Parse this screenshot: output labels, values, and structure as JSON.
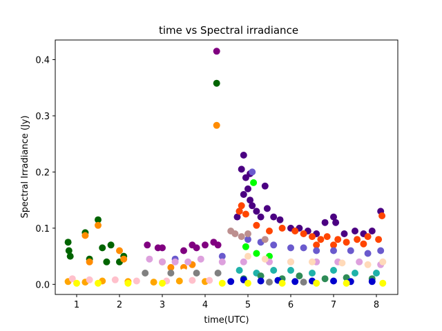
{
  "chart_data": {
    "type": "scatter",
    "title": "time vs Spectral irradiance",
    "xlabel": "time(UTC)",
    "ylabel": "Spectral Irradiance (Jy)",
    "xlim": [
      0.5,
      8.5
    ],
    "ylim": [
      -0.018,
      0.435
    ],
    "xticks": [
      1,
      2,
      3,
      4,
      5,
      6,
      7,
      8
    ],
    "yticks": [
      0.0,
      0.1,
      0.2,
      0.3,
      0.4
    ],
    "ytick_labels": [
      "0.0",
      "0.1",
      "0.2",
      "0.3",
      "0.4"
    ],
    "grid": false,
    "legend": "none",
    "series": [
      {
        "color": "#4b0082",
        "points": [
          [
            4.9,
            0.23
          ],
          [
            4.85,
            0.205
          ],
          [
            4.95,
            0.19
          ],
          [
            5.0,
            0.17
          ],
          [
            4.9,
            0.16
          ],
          [
            5.05,
            0.15
          ],
          [
            5.1,
            0.14
          ],
          [
            4.8,
            0.13
          ],
          [
            5.2,
            0.13
          ],
          [
            5.3,
            0.12
          ],
          [
            5.45,
            0.135
          ],
          [
            5.6,
            0.12
          ],
          [
            5.75,
            0.115
          ],
          [
            6.0,
            0.1
          ],
          [
            6.2,
            0.1
          ],
          [
            6.4,
            0.095
          ],
          [
            6.6,
            0.09
          ],
          [
            6.8,
            0.11
          ],
          [
            7.0,
            0.12
          ],
          [
            7.05,
            0.11
          ],
          [
            7.25,
            0.09
          ],
          [
            7.5,
            0.095
          ],
          [
            7.7,
            0.09
          ],
          [
            7.9,
            0.095
          ],
          [
            8.1,
            0.13
          ],
          [
            5.05,
            0.197
          ],
          [
            5.4,
            0.175
          ],
          [
            4.75,
            0.12
          ]
        ]
      },
      {
        "color": "#800080",
        "points": [
          [
            4.27,
            0.415
          ],
          [
            2.65,
            0.07
          ],
          [
            2.9,
            0.065
          ],
          [
            3.0,
            0.065
          ],
          [
            3.5,
            0.06
          ],
          [
            3.7,
            0.07
          ],
          [
            3.8,
            0.065
          ],
          [
            4.0,
            0.07
          ],
          [
            4.2,
            0.075
          ],
          [
            4.3,
            0.07
          ]
        ]
      },
      {
        "color": "#006400",
        "points": [
          [
            4.27,
            0.358
          ],
          [
            0.8,
            0.075
          ],
          [
            0.82,
            0.06
          ],
          [
            1.2,
            0.092
          ],
          [
            1.5,
            0.115
          ],
          [
            1.6,
            0.065
          ],
          [
            1.8,
            0.07
          ],
          [
            2.1,
            0.05
          ],
          [
            1.3,
            0.045
          ],
          [
            1.7,
            0.04
          ],
          [
            0.85,
            0.05
          ],
          [
            2.0,
            0.04
          ]
        ]
      },
      {
        "color": "#ff8c00",
        "points": [
          [
            4.27,
            0.283
          ],
          [
            1.5,
            0.105
          ],
          [
            1.2,
            0.087
          ],
          [
            1.3,
            0.04
          ],
          [
            2.0,
            0.06
          ],
          [
            2.1,
            0.045
          ],
          [
            3.0,
            0.04
          ],
          [
            3.2,
            0.03
          ],
          [
            3.5,
            0.03
          ],
          [
            3.7,
            0.035
          ]
        ]
      },
      {
        "color": "#ff4500",
        "points": [
          [
            4.8,
            0.13
          ],
          [
            4.85,
            0.14
          ],
          [
            4.95,
            0.125
          ],
          [
            5.2,
            0.105
          ],
          [
            5.5,
            0.095
          ],
          [
            5.8,
            0.1
          ],
          [
            6.1,
            0.095
          ],
          [
            6.3,
            0.09
          ],
          [
            6.5,
            0.085
          ],
          [
            6.7,
            0.08
          ],
          [
            6.85,
            0.085
          ],
          [
            7.1,
            0.08
          ],
          [
            7.3,
            0.075
          ],
          [
            7.55,
            0.08
          ],
          [
            7.8,
            0.085
          ],
          [
            8.05,
            0.08
          ],
          [
            8.13,
            0.122
          ],
          [
            6.6,
            0.07
          ],
          [
            7.0,
            0.07
          ],
          [
            7.7,
            0.072
          ]
        ]
      },
      {
        "color": "#6a5acd",
        "points": [
          [
            5.1,
            0.2
          ],
          [
            5.0,
            0.08
          ],
          [
            5.3,
            0.075
          ],
          [
            5.6,
            0.07
          ],
          [
            6.0,
            0.065
          ],
          [
            6.3,
            0.065
          ],
          [
            6.6,
            0.06
          ],
          [
            7.0,
            0.06
          ],
          [
            7.4,
            0.06
          ],
          [
            7.8,
            0.055
          ],
          [
            8.1,
            0.06
          ],
          [
            4.4,
            0.05
          ],
          [
            3.3,
            0.045
          ]
        ]
      },
      {
        "color": "#00ff00",
        "points": [
          [
            5.13,
            0.181
          ],
          [
            4.95,
            0.067
          ],
          [
            5.2,
            0.055
          ],
          [
            5.5,
            0.05
          ]
        ]
      },
      {
        "color": "#bc8f8f",
        "points": [
          [
            4.6,
            0.095
          ],
          [
            4.7,
            0.09
          ],
          [
            4.85,
            0.085
          ],
          [
            5.0,
            0.09
          ],
          [
            5.4,
            0.08
          ]
        ]
      },
      {
        "color": "#dda0dd",
        "points": [
          [
            2.7,
            0.045
          ],
          [
            3.0,
            0.04
          ],
          [
            3.3,
            0.04
          ],
          [
            3.6,
            0.04
          ],
          [
            3.9,
            0.045
          ],
          [
            4.4,
            0.04
          ],
          [
            4.9,
            0.04
          ],
          [
            5.5,
            0.04
          ],
          [
            6.0,
            0.04
          ],
          [
            6.6,
            0.04
          ],
          [
            7.1,
            0.04
          ],
          [
            7.6,
            0.04
          ],
          [
            8.1,
            0.035
          ]
        ]
      },
      {
        "color": "#ffdab9",
        "points": [
          [
            5.0,
            0.05
          ],
          [
            5.4,
            0.045
          ],
          [
            6.0,
            0.04
          ],
          [
            6.5,
            0.04
          ],
          [
            7.2,
            0.038
          ],
          [
            7.8,
            0.035
          ],
          [
            8.15,
            0.04
          ]
        ]
      },
      {
        "color": "#20b2aa",
        "points": [
          [
            4.8,
            0.025
          ],
          [
            5.2,
            0.02
          ],
          [
            5.6,
            0.025
          ],
          [
            6.0,
            0.025
          ],
          [
            6.5,
            0.02
          ],
          [
            7.0,
            0.025
          ],
          [
            7.5,
            0.02
          ],
          [
            8.0,
            0.02
          ]
        ]
      },
      {
        "color": "#2e8b57",
        "points": [
          [
            4.9,
            0.01
          ],
          [
            5.3,
            0.015
          ],
          [
            5.8,
            0.01
          ],
          [
            6.2,
            0.015
          ],
          [
            6.8,
            0.01
          ],
          [
            7.3,
            0.012
          ],
          [
            7.9,
            0.01
          ]
        ]
      },
      {
        "color": "#0000cd",
        "points": [
          [
            4.6,
            0.005
          ],
          [
            4.9,
            0.008
          ],
          [
            5.3,
            0.006
          ],
          [
            5.7,
            0.007
          ],
          [
            6.1,
            0.005
          ],
          [
            6.5,
            0.006
          ],
          [
            7.0,
            0.006
          ],
          [
            7.4,
            0.005
          ],
          [
            7.9,
            0.005
          ]
        ]
      },
      {
        "color": "#ffffff",
        "points": [
          [
            1.2,
            0.03
          ],
          [
            1.5,
            0.028
          ],
          [
            2.0,
            0.025
          ],
          [
            2.5,
            0.025
          ],
          [
            3.0,
            0.022
          ],
          [
            3.5,
            0.022
          ],
          [
            4.0,
            0.025
          ],
          [
            0.9,
            0.03
          ]
        ]
      },
      {
        "color": "#808080",
        "points": [
          [
            2.6,
            0.02
          ],
          [
            3.2,
            0.02
          ],
          [
            3.8,
            0.02
          ],
          [
            4.3,
            0.02
          ],
          [
            5.5,
            0.004
          ],
          [
            6.3,
            0.004
          ]
        ]
      },
      {
        "color": "#ffa500",
        "points": [
          [
            0.8,
            0.005
          ],
          [
            1.2,
            0.004
          ],
          [
            1.6,
            0.006
          ],
          [
            2.2,
            0.005
          ],
          [
            2.8,
            0.004
          ],
          [
            3.4,
            0.006
          ],
          [
            4.0,
            0.005
          ]
        ]
      },
      {
        "color": "#ffc0cb",
        "points": [
          [
            0.9,
            0.01
          ],
          [
            1.3,
            0.008
          ],
          [
            1.9,
            0.008
          ],
          [
            2.4,
            0.006
          ],
          [
            3.1,
            0.006
          ],
          [
            3.7,
            0.007
          ],
          [
            4.1,
            0.007
          ]
        ]
      },
      {
        "color": "#ffff00",
        "points": [
          [
            1.0,
            0.002
          ],
          [
            1.5,
            0.002
          ],
          [
            2.2,
            0.002
          ],
          [
            3.0,
            0.002
          ],
          [
            4.4,
            0.002
          ],
          [
            5.0,
            0.002
          ],
          [
            5.8,
            0.002
          ],
          [
            6.6,
            0.002
          ],
          [
            7.3,
            0.002
          ],
          [
            8.15,
            0.002
          ]
        ]
      }
    ]
  }
}
